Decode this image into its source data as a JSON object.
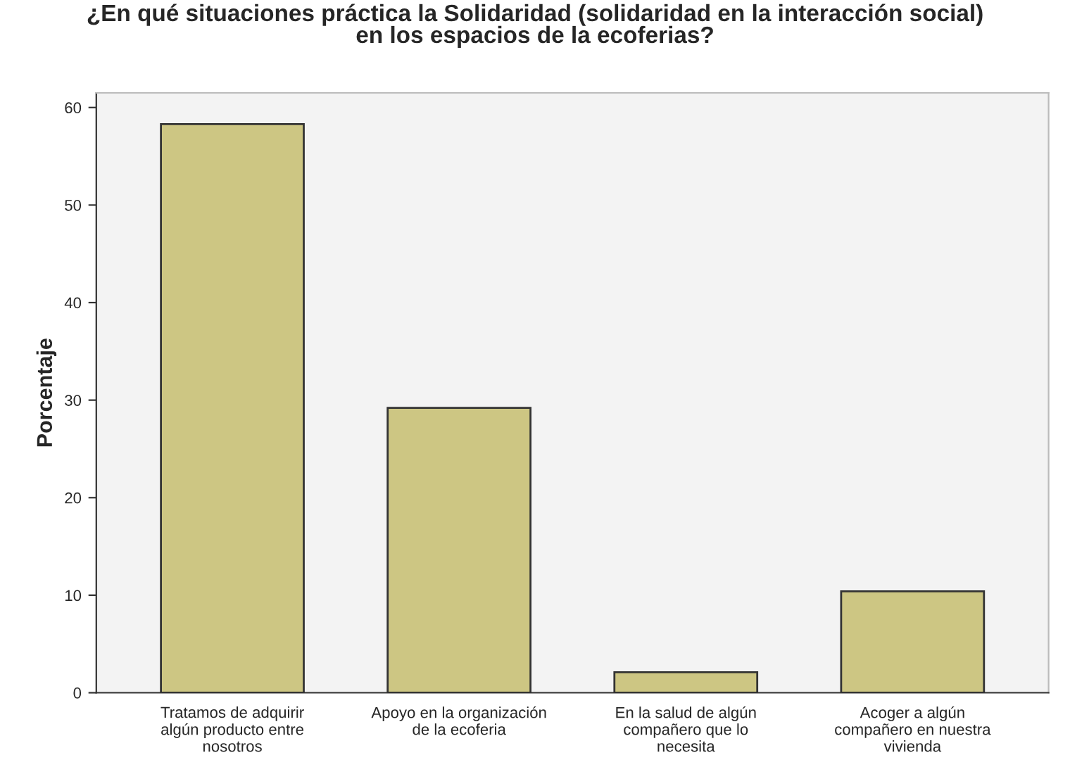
{
  "chart_data": {
    "type": "bar",
    "title": "¿En qué situaciones práctica la Solidaridad (solidaridad en la interacción social)\nen los espacios de la ecoferias?",
    "ylabel": "Porcentaje",
    "categories": [
      "Tratamos de adquirir\nalgún producto entre\nnosotros",
      "Apoyo en la organización\nde la ecoferia",
      "En la salud de algún\ncompañero que lo\nnecesita",
      "Acoger a algún\ncompañero en nuestra\nvivienda"
    ],
    "values": [
      58.3,
      29.2,
      2.1,
      10.4
    ],
    "color": "#cdc683",
    "ylim": [
      0,
      61.5
    ],
    "yticks": [
      0,
      10,
      20,
      30,
      40,
      50,
      60
    ],
    "grid": false,
    "legend": false
  }
}
